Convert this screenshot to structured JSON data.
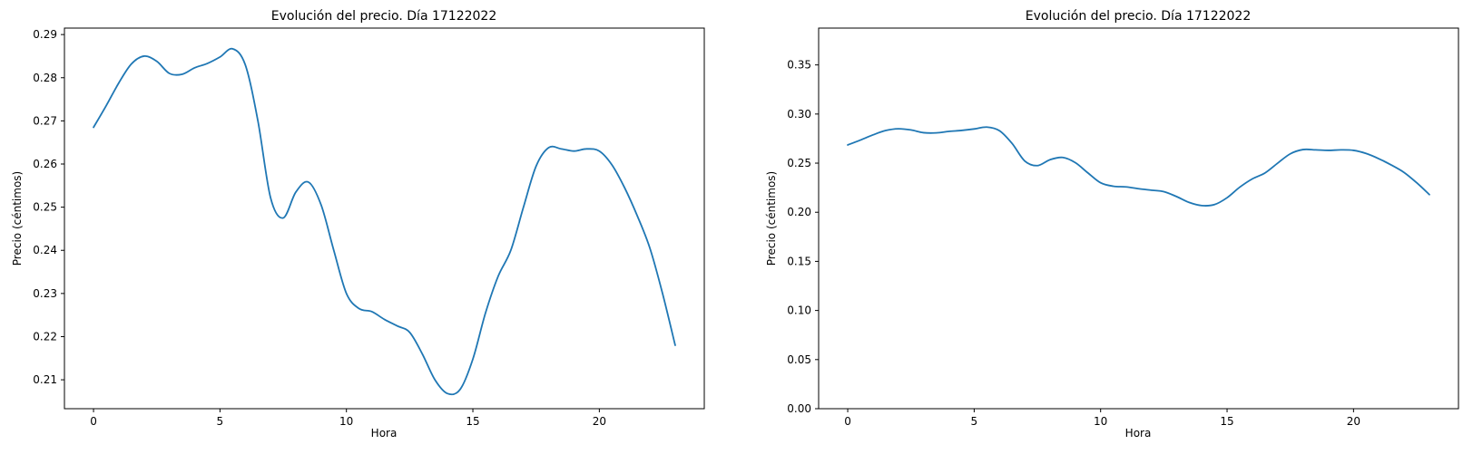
{
  "chart_data": [
    {
      "type": "line",
      "title": "Evolución del precio. Día 17122022",
      "xlabel": "Hora",
      "ylabel": "Precio (céntimos)",
      "xlim": [
        -1.15,
        24.15
      ],
      "ylim": [
        0.2033,
        0.2915
      ],
      "xticks": [
        0,
        5,
        10,
        15,
        20
      ],
      "xtick_labels": [
        "0",
        "5",
        "10",
        "15",
        "20"
      ],
      "yticks": [
        0.21,
        0.22,
        0.23,
        0.24,
        0.25,
        0.26,
        0.27,
        0.28,
        0.29
      ],
      "ytick_labels": [
        "0.21",
        "0.22",
        "0.23",
        "0.24",
        "0.25",
        "0.26",
        "0.27",
        "0.28",
        "0.29"
      ],
      "grid": false,
      "color": "#1f77b4",
      "series": [
        {
          "x": [
            0,
            0.5,
            1,
            1.5,
            2,
            2.5,
            3,
            3.5,
            4,
            4.5,
            5,
            5.5,
            6,
            6.5,
            7,
            7.5,
            8,
            8.5,
            9,
            9.5,
            10,
            10.5,
            11,
            11.5,
            12,
            12.5,
            13,
            13.5,
            14,
            14.5,
            15,
            15.5,
            16,
            16.5,
            17,
            17.5,
            18,
            18.5,
            19,
            19.5,
            20,
            20.5,
            21,
            21.5,
            22,
            22.5,
            23
          ],
          "values": [
            0.2685,
            0.2735,
            0.2788,
            0.2832,
            0.285,
            0.2838,
            0.281,
            0.2808,
            0.2823,
            0.2833,
            0.2848,
            0.2867,
            0.283,
            0.27,
            0.2522,
            0.2475,
            0.2535,
            0.2558,
            0.2505,
            0.24,
            0.23,
            0.2265,
            0.2258,
            0.224,
            0.2225,
            0.221,
            0.216,
            0.21,
            0.2068,
            0.2078,
            0.2148,
            0.2255,
            0.234,
            0.24,
            0.25,
            0.2595,
            0.2638,
            0.2635,
            0.263,
            0.2635,
            0.263,
            0.2598,
            0.2545,
            0.248,
            0.2405,
            0.23,
            0.218
          ]
        }
      ]
    },
    {
      "type": "line",
      "title": "Evolución del precio. Día 17122022",
      "xlabel": "Hora",
      "ylabel": "Precio (céntimos)",
      "xlim": [
        -1.15,
        24.15
      ],
      "ylim": [
        0,
        0.3875
      ],
      "xticks": [
        0,
        5,
        10,
        15,
        20
      ],
      "xtick_labels": [
        "0",
        "5",
        "10",
        "15",
        "20"
      ],
      "yticks": [
        0,
        0.05,
        0.1,
        0.15,
        0.2,
        0.25,
        0.3,
        0.35
      ],
      "ytick_labels": [
        "0.00",
        "0.05",
        "0.10",
        "0.15",
        "0.20",
        "0.25",
        "0.30",
        "0.35"
      ],
      "grid": false,
      "color": "#1f77b4",
      "series": [
        {
          "x": [
            0,
            0.5,
            1,
            1.5,
            2,
            2.5,
            3,
            3.5,
            4,
            4.5,
            5,
            5.5,
            6,
            6.5,
            7,
            7.5,
            8,
            8.5,
            9,
            9.5,
            10,
            10.5,
            11,
            11.5,
            12,
            12.5,
            13,
            13.5,
            14,
            14.5,
            15,
            15.5,
            16,
            16.5,
            17,
            17.5,
            18,
            18.5,
            19,
            19.5,
            20,
            20.5,
            21,
            21.5,
            22,
            22.5,
            23
          ],
          "values": [
            0.2685,
            0.2735,
            0.2788,
            0.2832,
            0.285,
            0.2838,
            0.281,
            0.2808,
            0.2823,
            0.2833,
            0.2848,
            0.2867,
            0.283,
            0.27,
            0.2522,
            0.2475,
            0.2535,
            0.2558,
            0.2505,
            0.24,
            0.23,
            0.2265,
            0.2258,
            0.224,
            0.2225,
            0.221,
            0.216,
            0.21,
            0.2068,
            0.2078,
            0.2148,
            0.2255,
            0.234,
            0.24,
            0.25,
            0.2595,
            0.2638,
            0.2635,
            0.263,
            0.2635,
            0.263,
            0.2598,
            0.2545,
            0.248,
            0.2405,
            0.23,
            0.218
          ]
        }
      ]
    }
  ]
}
